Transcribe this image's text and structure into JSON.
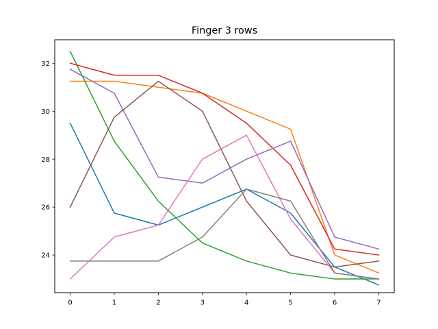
{
  "chart_data": {
    "type": "line",
    "title": "Finger 3 rows",
    "xlabel": "",
    "ylabel": "",
    "x": [
      0,
      1,
      2,
      3,
      4,
      5,
      6,
      7
    ],
    "xlim": [
      -0.35,
      7.35
    ],
    "ylim": [
      22.43,
      32.98
    ],
    "xticks": [
      0,
      1,
      2,
      3,
      4,
      5,
      6,
      7
    ],
    "yticks": [
      24,
      26,
      28,
      30,
      32
    ],
    "grid": false,
    "legend": "none",
    "series": [
      {
        "color": "#1f77b4",
        "values": [
          29.5,
          25.75,
          25.25,
          26.0,
          26.75,
          25.75,
          23.5,
          22.75
        ]
      },
      {
        "color": "#ff7f0e",
        "values": [
          31.25,
          31.25,
          31.0,
          30.75,
          30.0,
          29.25,
          24.0,
          23.25
        ]
      },
      {
        "color": "#2ca02c",
        "values": [
          32.5,
          28.75,
          26.25,
          24.5,
          23.75,
          23.25,
          23.0,
          23.0
        ]
      },
      {
        "color": "#d62728",
        "values": [
          32.0,
          31.5,
          31.5,
          30.75,
          29.5,
          27.75,
          24.25,
          24.0
        ]
      },
      {
        "color": "#9467bd",
        "values": [
          31.75,
          30.75,
          27.25,
          27.0,
          28.0,
          28.75,
          24.75,
          24.25
        ]
      },
      {
        "color": "#8c564b",
        "values": [
          26.0,
          29.75,
          31.25,
          30.0,
          26.25,
          24.0,
          23.5,
          23.75
        ]
      },
      {
        "color": "#e377c2",
        "values": [
          23.0,
          24.75,
          25.25,
          28.0,
          29.0,
          25.5,
          23.25,
          23.0
        ]
      },
      {
        "color": "#7f7f7f",
        "values": [
          23.75,
          23.75,
          23.75,
          24.75,
          26.75,
          26.25,
          23.25,
          23.0
        ]
      }
    ]
  }
}
